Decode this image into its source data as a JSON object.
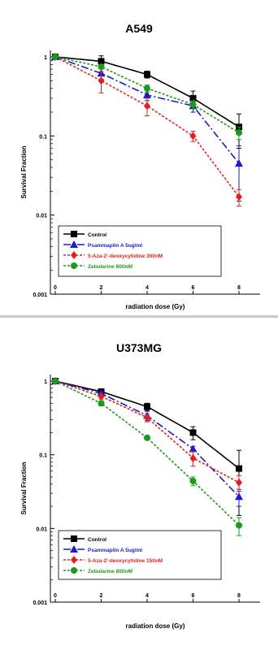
{
  "chart_data": [
    {
      "type": "line",
      "title": "A549",
      "xlabel": "radiation dose (Gy)",
      "ylabel": "Survival Fraction",
      "y_scale": "log",
      "ylim": [
        0.001,
        1
      ],
      "xlim": [
        0,
        8
      ],
      "x_ticks": [
        "0",
        "2",
        "4",
        "6",
        "8"
      ],
      "y_ticks": [
        "0.001",
        "0.01",
        "0.1",
        "1"
      ],
      "legend_position": "bottom-left",
      "x": [
        0,
        2,
        4,
        6,
        8
      ],
      "series": [
        {
          "name": "Control",
          "color": "#000000",
          "marker": "square",
          "dash": "solid",
          "values": [
            1.0,
            0.88,
            0.6,
            0.3,
            0.13
          ],
          "errors": [
            0,
            0.15,
            0.06,
            0.07,
            0.06
          ]
        },
        {
          "name": "Psammaplin A 5ug/ml",
          "color": "#1a1ad0",
          "marker": "triangle",
          "dash": "dashdot",
          "values": [
            1.0,
            0.62,
            0.33,
            0.24,
            0.045
          ],
          "errors": [
            0,
            0.1,
            0.05,
            0.04,
            0.03
          ]
        },
        {
          "name": "5-Aza-2'-deoxycytidine 300nM",
          "color": "#e02020",
          "marker": "diamond",
          "dash": "dotted",
          "values": [
            1.0,
            0.5,
            0.24,
            0.1,
            0.017
          ],
          "errors": [
            0,
            0.15,
            0.06,
            0.015,
            0.004
          ]
        },
        {
          "name": "Zebularine 800nM",
          "color": "#1a9a1a",
          "marker": "circle",
          "dash": "dotted",
          "values": [
            1.0,
            0.75,
            0.4,
            0.25,
            0.11
          ],
          "errors": [
            0,
            0.05,
            0.04,
            0.03,
            0.02
          ]
        }
      ]
    },
    {
      "type": "line",
      "title": "U373MG",
      "xlabel": "radiation dose (Gy)",
      "ylabel": "Survival Fraction",
      "y_scale": "log",
      "ylim": [
        0.001,
        1
      ],
      "xlim": [
        0,
        8
      ],
      "x_ticks": [
        "0",
        "2",
        "4",
        "6",
        "8"
      ],
      "y_ticks": [
        "0.001",
        "0.01",
        "0.1",
        "1"
      ],
      "legend_position": "bottom-left",
      "x": [
        0,
        2,
        4,
        6,
        8
      ],
      "series": [
        {
          "name": "Control",
          "color": "#000000",
          "marker": "square",
          "dash": "solid",
          "values": [
            1.0,
            0.72,
            0.45,
            0.2,
            0.065
          ],
          "errors": [
            0,
            0.05,
            0.05,
            0.04,
            0.05
          ]
        },
        {
          "name": "Psammaplin A 5ug/ml",
          "color": "#1a1ad0",
          "marker": "triangle",
          "dash": "dashdot",
          "values": [
            1.0,
            0.68,
            0.34,
            0.12,
            0.027
          ],
          "errors": [
            0,
            0.04,
            0.05,
            0.01,
            0.007
          ]
        },
        {
          "name": "5-Aza-2'-deoxycytidine 150nM",
          "color": "#e02020",
          "marker": "diamond",
          "dash": "dotted",
          "values": [
            1.0,
            0.62,
            0.32,
            0.09,
            0.042
          ],
          "errors": [
            0,
            0.05,
            0.04,
            0.02,
            0.01
          ]
        },
        {
          "name": "Zebularine 800nM",
          "color": "#1a9a1a",
          "marker": "circle",
          "dash": "dotted",
          "values": [
            1.0,
            0.5,
            0.17,
            0.044,
            0.011
          ],
          "errors": [
            0,
            0.04,
            0.01,
            0.006,
            0.003
          ]
        }
      ]
    }
  ]
}
